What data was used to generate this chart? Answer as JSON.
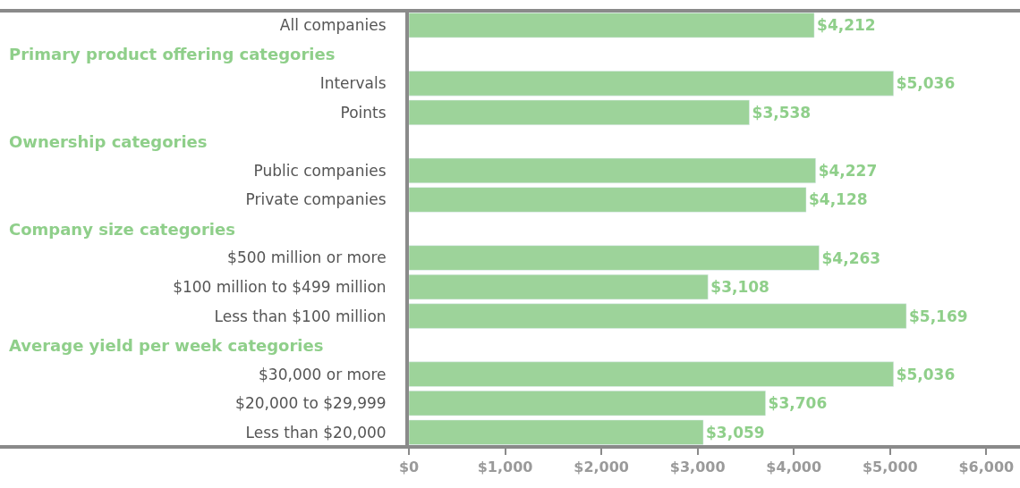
{
  "chart_data": {
    "type": "bar",
    "orientation": "horizontal",
    "color": "#9dd39a",
    "categories": [
      "All companies",
      null,
      "Intervals",
      "Points",
      null,
      "Public companies",
      "Private companies",
      null,
      "$500 million or more",
      "$100 million to $499 million",
      "Less than $100 million",
      null,
      "$30,000 or more",
      "$20,000 to $29,999",
      "Less than $20,000"
    ],
    "values": [
      4212,
      null,
      5036,
      3538,
      null,
      4227,
      4128,
      null,
      4263,
      3108,
      5169,
      null,
      5036,
      3706,
      3059
    ],
    "value_labels": [
      "$4,212",
      null,
      "$5,036",
      "$3,538",
      null,
      "$4,227",
      "$4,128",
      null,
      "$4,263",
      "$3,108",
      "$5,169",
      null,
      "$5,036",
      "$3,706",
      "$3,059"
    ],
    "annotations": [
      "Primary product offering categories",
      "Ownership categories",
      "Company size categories",
      "Average yield per week categories"
    ],
    "xlim": [
      0,
      6350
    ],
    "xticks": [
      {
        "value": 0,
        "label": "$0"
      },
      {
        "value": 1000,
        "label": "$1,000"
      },
      {
        "value": 2000,
        "label": "$2,000"
      },
      {
        "value": 3000,
        "label": "$3,000"
      },
      {
        "value": 4000,
        "label": "$4,000"
      },
      {
        "value": 5000,
        "label": "$5,000"
      },
      {
        "value": 6000,
        "label": "$6,000"
      }
    ],
    "legend": false
  }
}
